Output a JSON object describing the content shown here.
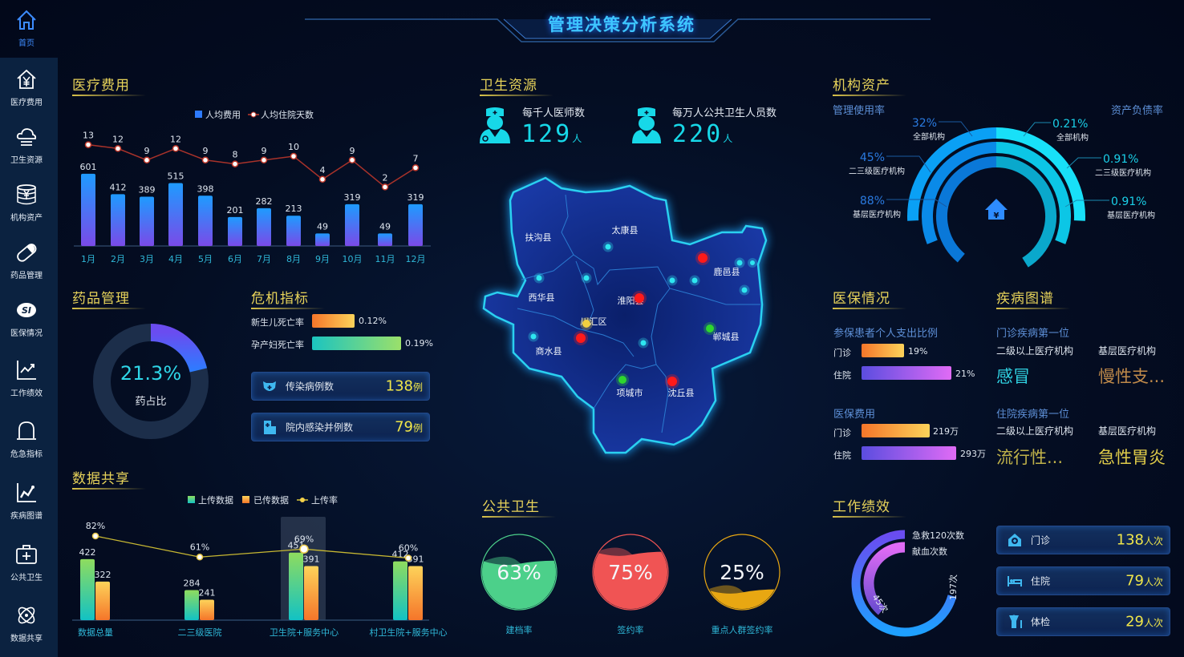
{
  "header": {
    "title": "管理决策分析系统"
  },
  "sidebar": {
    "items": [
      {
        "label": "首页",
        "icon": "home-icon"
      },
      {
        "label": "医疗费用",
        "icon": "yen-house-icon"
      },
      {
        "label": "卫生资源",
        "icon": "cloud-icon"
      },
      {
        "label": "机构资产",
        "icon": "yen-coins-icon"
      },
      {
        "label": "药品管理",
        "icon": "pill-icon"
      },
      {
        "label": "医保情况",
        "icon": "si-logo-icon"
      },
      {
        "label": "工作绩效",
        "icon": "trend-chart-icon"
      },
      {
        "label": "危急指标",
        "icon": "alarm-bell-icon"
      },
      {
        "label": "疾病图谱",
        "icon": "line-chart-icon"
      },
      {
        "label": "公共卫生",
        "icon": "medical-kit-icon"
      },
      {
        "label": "数据共享",
        "icon": "atom-icon"
      }
    ]
  },
  "sections": {
    "medical_cost": "医疗费用",
    "drugs": "药品管理",
    "crisis": "危机指标",
    "data_share": "数据共享",
    "health_resources": "卫生资源",
    "public_health": "公共卫生",
    "assets": "机构资产",
    "insurance": "医保情况",
    "disease": "疾病图谱",
    "performance": "工作绩效"
  },
  "chart_data": [
    {
      "type": "bar+line",
      "categories": [
        "1月",
        "2月",
        "3月",
        "4月",
        "5月",
        "6月",
        "7月",
        "8月",
        "9月",
        "10月",
        "11月",
        "12月"
      ],
      "series": [
        {
          "name": "人均费用",
          "type": "bar",
          "values": [
            601,
            412,
            389,
            515,
            398,
            201,
            282,
            213,
            49,
            319,
            49,
            319
          ]
        },
        {
          "name": "人均住院天数",
          "type": "line",
          "values": [
            13,
            12,
            9,
            12,
            9,
            8,
            9,
            10,
            4,
            9,
            2,
            7
          ]
        }
      ],
      "legend": "top",
      "grid": false
    },
    {
      "type": "bar+line",
      "categories": [
        "数据总量",
        "二三级医院",
        "卫生院+服务中心",
        "村卫生院+服务中心"
      ],
      "series": [
        {
          "name": "上传数据",
          "type": "bar",
          "values": [
            422,
            284,
            451,
            412
          ]
        },
        {
          "name": "已传数据",
          "type": "bar",
          "values": [
            322,
            241,
            391,
            391
          ]
        },
        {
          "name": "上传率",
          "type": "line",
          "values": [
            "82%",
            "61%",
            "69%",
            "60%"
          ]
        }
      ],
      "highlighted": "卫生院+服务中心",
      "legend": "top",
      "grid": false
    }
  ],
  "drugs": {
    "value": "21.3%",
    "fraction": 0.213,
    "label": "药占比"
  },
  "crisis": {
    "rates": [
      {
        "label": "新生儿死亡率",
        "value": "0.12%"
      },
      {
        "label": "孕产妇死亡率",
        "value": "0.19%"
      }
    ],
    "cards": [
      {
        "label": "传染病例数",
        "value": "138",
        "unit": "例",
        "icon": "virus-mask-icon"
      },
      {
        "label": "院内感染并例数",
        "value": "79",
        "unit": "例",
        "icon": "hospital-icon"
      }
    ]
  },
  "health_resources": {
    "stats": [
      {
        "label": "每千人医师数",
        "value": "129",
        "unit": "人",
        "icon": "doctor-icon"
      },
      {
        "label": "每万人公共卫生人员数",
        "value": "220",
        "unit": "人",
        "icon": "nurse-icon"
      }
    ],
    "map": {
      "regions": [
        "扶沟县",
        "太康县",
        "鹿邑县",
        "西华县",
        "淮阳县",
        "川汇区",
        "商水县",
        "郸城县",
        "项城市",
        "沈丘县"
      ]
    }
  },
  "public_health": {
    "gauges": [
      {
        "value": "63%",
        "fraction": 0.63,
        "label": "建档率",
        "color": "#4cd08a"
      },
      {
        "value": "75%",
        "fraction": 0.75,
        "label": "签约率",
        "color": "#f05454"
      },
      {
        "value": "25%",
        "fraction": 0.25,
        "label": "重点人群签约率",
        "color": "#e8a712"
      }
    ]
  },
  "assets": {
    "left_title": "管理使用率",
    "right_title": "资产负债率",
    "left": [
      {
        "value": "32%",
        "label": "全部机构"
      },
      {
        "value": "45%",
        "label": "二三级医疗机构"
      },
      {
        "value": "88%",
        "label": "基层医疗机构"
      }
    ],
    "right": [
      {
        "value": "0.21%",
        "label": "全部机构"
      },
      {
        "value": "0.91%",
        "label": "二三级医疗机构"
      },
      {
        "value": "0.91%",
        "label": "基层医疗机构"
      }
    ]
  },
  "insurance": {
    "ratio": {
      "title": "参保患者个人支出比例",
      "rows": [
        {
          "label": "门诊",
          "value": "19%"
        },
        {
          "label": "住院",
          "value": "21%"
        }
      ]
    },
    "cost": {
      "title": "医保费用",
      "rows": [
        {
          "label": "门诊",
          "value": "219万"
        },
        {
          "label": "住院",
          "value": "293万"
        }
      ]
    }
  },
  "disease": {
    "blocks": [
      {
        "title": "门诊疾病第一位",
        "cols": [
          {
            "label": "二级以上医疗机构",
            "value": "感冒"
          },
          {
            "label": "基层医疗机构",
            "value": "慢性支..."
          }
        ]
      },
      {
        "title": "住院疾病第一位",
        "cols": [
          {
            "label": "二级以上医疗机构",
            "value": "流行性..."
          },
          {
            "label": "基层医疗机构",
            "value": "急性胃炎"
          }
        ]
      }
    ]
  },
  "performance": {
    "ring": [
      {
        "label": "急救120次数",
        "value": "197次"
      },
      {
        "label": "献血次数",
        "value": "45次"
      }
    ],
    "cards": [
      {
        "label": "门诊",
        "value": "138",
        "unit": "人次",
        "icon": "clinic-icon"
      },
      {
        "label": "住院",
        "value": "79",
        "unit": "人次",
        "icon": "bed-icon"
      },
      {
        "label": "体检",
        "value": "29",
        "unit": "人次",
        "icon": "checkup-icon"
      }
    ]
  }
}
